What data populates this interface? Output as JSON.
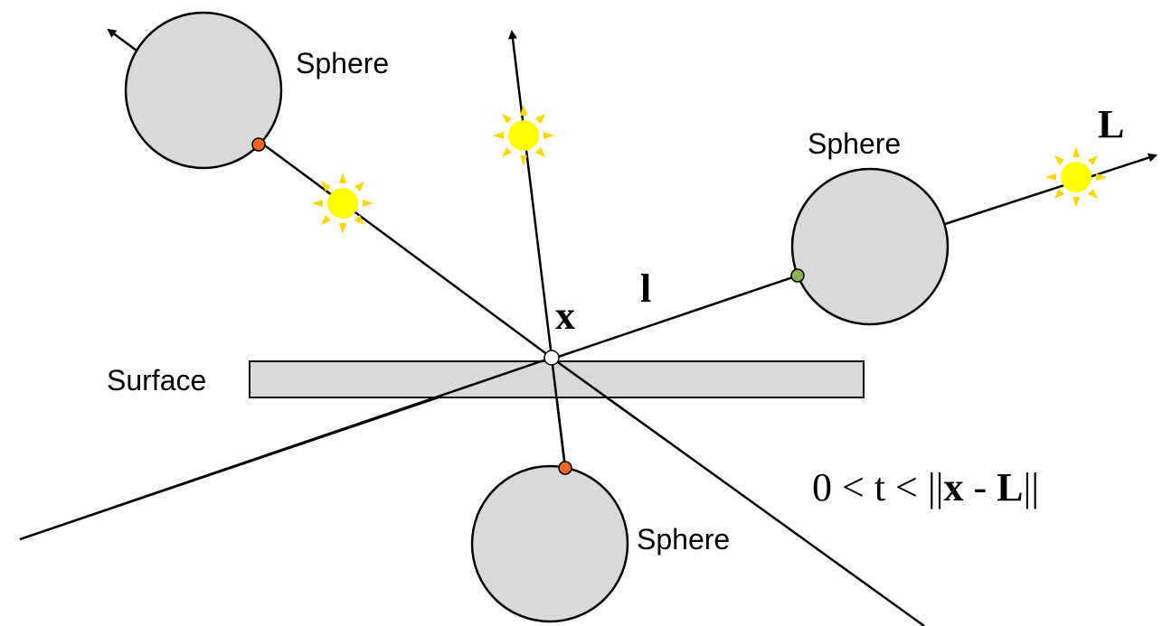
{
  "labels": {
    "sphere_top_left": "Sphere",
    "sphere_right": "Sphere",
    "sphere_bottom": "Sphere",
    "surface": "Surface",
    "point": "x",
    "direction": "l",
    "light": "L"
  },
  "formula": {
    "parts": [
      "0 < t < ||",
      "x",
      " - ",
      "L",
      "||"
    ]
  }
}
